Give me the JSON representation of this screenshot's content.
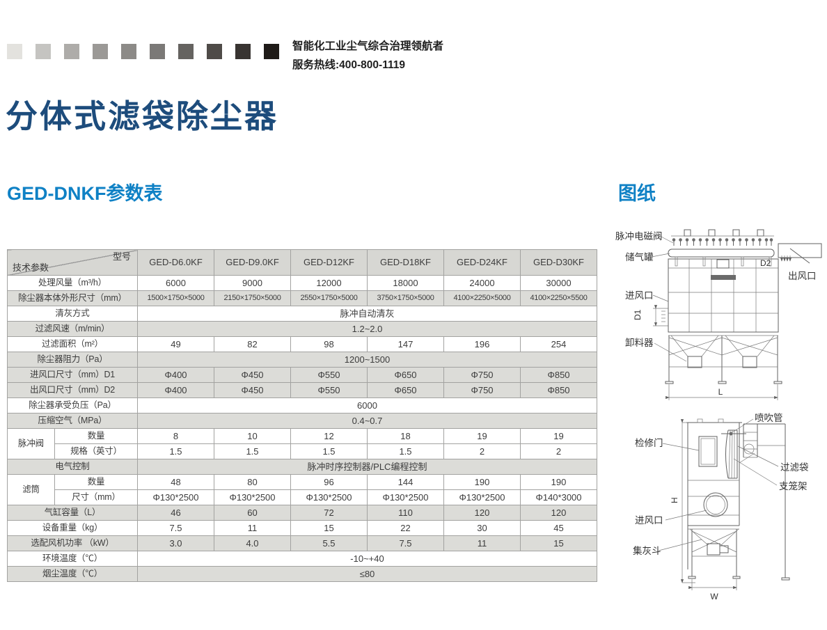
{
  "header": {
    "tagline": "智能化工业尘气综合治理领航者",
    "hotline": "服务热线:400-800-1119",
    "gradient_squares": [
      "#e3e2de",
      "#c5c4c1",
      "#aeaca9",
      "#9b9996",
      "#8c8a87",
      "#7b7977",
      "#656360",
      "#4f4b48",
      "#383431",
      "#1f1b18"
    ]
  },
  "page": {
    "title": "分体式滤袋除尘器"
  },
  "sections": {
    "table_title": "GED-DNKF参数表",
    "drawing_title": "图纸"
  },
  "table": {
    "corner": {
      "top_right": "型号",
      "bottom_left": "技术参数"
    },
    "columns": [
      "GED-D6.0KF",
      "GED-D9.0KF",
      "GED-D12KF",
      "GED-D18KF",
      "GED-D24KF",
      "GED-D30KF"
    ],
    "rows": [
      {
        "kind": "normal",
        "label": "处理风量（m³/h）",
        "cells": [
          "6000",
          "9000",
          "12000",
          "18000",
          "24000",
          "30000"
        ],
        "shade": false
      },
      {
        "kind": "normal",
        "label": "除尘器本体外形尺寸（mm）",
        "cells": [
          "1500×1750×5000",
          "2150×1750×5000",
          "2550×1750×5000",
          "3750×1750×5000",
          "4100×2250×5000",
          "4100×2250×5500"
        ],
        "shade": true
      },
      {
        "kind": "span",
        "label": "清灰方式",
        "value": "脉冲自动清灰",
        "shade": false
      },
      {
        "kind": "span",
        "label": "过滤风速（m/min）",
        "value": "1.2~2.0",
        "shade": true
      },
      {
        "kind": "normal",
        "label": "过滤面积（m²）",
        "cells": [
          "49",
          "82",
          "98",
          "147",
          "196",
          "254"
        ],
        "shade": false
      },
      {
        "kind": "span",
        "label": "除尘器阻力（Pa）",
        "value": "1200~1500",
        "shade": true
      },
      {
        "kind": "normal",
        "label": "进风口尺寸（mm）D1",
        "cells": [
          "Φ400",
          "Φ450",
          "Φ550",
          "Φ650",
          "Φ750",
          "Φ850"
        ],
        "shade": true
      },
      {
        "kind": "normal",
        "label": "出风口尺寸（mm）D2",
        "cells": [
          "Φ400",
          "Φ450",
          "Φ550",
          "Φ650",
          "Φ750",
          "Φ850"
        ],
        "shade": true
      },
      {
        "kind": "span",
        "label": "除尘器承受负压（Pa）",
        "value": "6000",
        "shade": false
      },
      {
        "kind": "span",
        "label": "压缩空气（MPa）",
        "value": "0.4~0.7",
        "shade": true
      },
      {
        "kind": "group-first",
        "group": "脉冲阀",
        "label": "数量",
        "cells": [
          "8",
          "10",
          "12",
          "18",
          "19",
          "19"
        ],
        "shade": false
      },
      {
        "kind": "group-second",
        "label": "规格（英寸）",
        "cells": [
          "1.5",
          "1.5",
          "1.5",
          "1.5",
          "2",
          "2"
        ],
        "shade": false
      },
      {
        "kind": "span",
        "label": "电气控制",
        "value": "脉冲时序控制器/PLC编程控制",
        "shade": true
      },
      {
        "kind": "group-first",
        "group": "滤筒",
        "label": "数量",
        "cells": [
          "48",
          "80",
          "96",
          "144",
          "190",
          "190"
        ],
        "shade": false
      },
      {
        "kind": "group-second",
        "label": "尺寸（mm）",
        "cells": [
          "Φ130*2500",
          "Φ130*2500",
          "Φ130*2500",
          "Φ130*2500",
          "Φ130*2500",
          "Φ140*3000"
        ],
        "shade": false
      },
      {
        "kind": "normal",
        "label": "气缸容量（L）",
        "cells": [
          "46",
          "60",
          "72",
          "110",
          "120",
          "120"
        ],
        "shade": true
      },
      {
        "kind": "normal",
        "label": "设备重量（kg）",
        "cells": [
          "7.5",
          "11",
          "15",
          "22",
          "30",
          "45"
        ],
        "shade": false
      },
      {
        "kind": "normal",
        "label": "选配风机功率 （kW）",
        "cells": [
          "3.0",
          "4.0",
          "5.5",
          "7.5",
          "11",
          "15"
        ],
        "shade": true
      },
      {
        "kind": "span",
        "label": "环境温度（℃）",
        "value": "-10~+40",
        "shade": false
      },
      {
        "kind": "span",
        "label": "烟尘温度（℃）",
        "value": "≤80",
        "shade": true
      }
    ]
  },
  "diagram1": {
    "labels": {
      "pulse_valve": "脉冲电磁阀",
      "air_tank": "储气罐",
      "air_inlet": "进风口",
      "discharger": "卸料器",
      "air_outlet": "出风口",
      "dim_d1": "D1",
      "dim_d2": "D2",
      "dim_l": "L"
    }
  },
  "diagram2": {
    "labels": {
      "blow_pipe": "喷吹管",
      "access_door": "检修门",
      "filter_bag": "过滤袋",
      "cage_frame": "支笼架",
      "air_inlet": "进风口",
      "dust_hopper": "集灰斗",
      "dim_h": "H",
      "dim_w": "W"
    }
  }
}
